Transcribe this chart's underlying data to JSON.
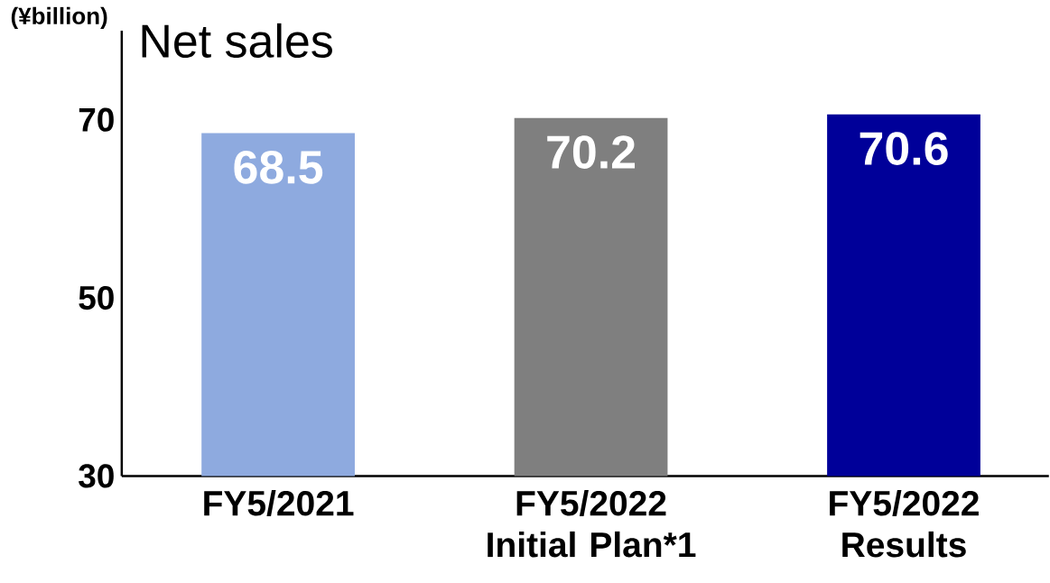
{
  "chart_data": {
    "type": "bar",
    "title": "Net sales",
    "ylabel": "(¥billion)",
    "categories": [
      "FY5/2021",
      "FY5/2022 Initial Plan*1",
      "FY5/2022 Results"
    ],
    "values": [
      68.5,
      70.2,
      70.6
    ],
    "colors": [
      "#8eaadf",
      "#7f7f7f",
      "#000099"
    ],
    "ylim": [
      30,
      80
    ],
    "yticks": [
      30,
      50,
      70
    ],
    "data_labels": true,
    "grid": false
  }
}
